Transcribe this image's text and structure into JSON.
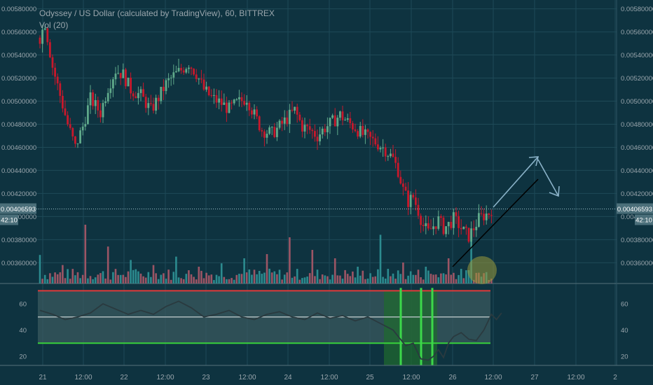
{
  "header": {
    "title": "Odyssey / US Dollar (calculated by TradingView), 60, BITTREX",
    "indicator": "Vol (20)"
  },
  "colors": {
    "background": "#0e3340",
    "grid": "#1e4a57",
    "up": "#5fa98a",
    "down": "#c8182b",
    "vol_up": "#2c8b8f",
    "vol_down": "#9c5565",
    "price_line": "#9bbfc8",
    "axis_text": "#9aa6ad",
    "osc_line": "#2a3a3f",
    "band_red": "#e03a3a",
    "band_green": "#37d13b",
    "band_fill": "#3c5b60",
    "arrow": "#8ab2c8",
    "trendline": "#000000",
    "highlight_bar": "#3cd84a",
    "highlight_zone": "#1f6b2e",
    "ellipse": "#9a9a3a"
  },
  "price_label": {
    "value": "0.00406593",
    "countdown": "42:10"
  },
  "chart_data": [
    {
      "type": "candlestick",
      "title": "Odyssey / US Dollar (calculated by TradingView), 60, BITTREX",
      "x_ticks": [
        "21",
        "12:00",
        "22",
        "12:00",
        "23",
        "12:00",
        "24",
        "12:00",
        "25",
        "12:00",
        "26",
        "12:00",
        "27",
        "12:00",
        "2"
      ],
      "y_ticks": [
        "0.00360000",
        "0.00380000",
        "0.00400000",
        "0.00420000",
        "0.00440000",
        "0.00460000",
        "0.00480000",
        "0.00500000",
        "0.00520000",
        "0.00540000",
        "0.00560000",
        "0.00580000"
      ],
      "ylim": [
        0.00342,
        0.00584
      ],
      "last_price": 0.00406593,
      "close_path": [
        [
          0,
          0.00555
        ],
        [
          2,
          0.00568
        ],
        [
          5,
          0.0053
        ],
        [
          8,
          0.00505
        ],
        [
          11,
          0.0048
        ],
        [
          14,
          0.0046
        ],
        [
          17,
          0.00478
        ],
        [
          20,
          0.00502
        ],
        [
          24,
          0.0049
        ],
        [
          27,
          0.00512
        ],
        [
          30,
          0.00527
        ],
        [
          33,
          0.00523
        ],
        [
          36,
          0.0051
        ],
        [
          40,
          0.00505
        ],
        [
          44,
          0.00492
        ],
        [
          47,
          0.00503
        ],
        [
          50,
          0.00515
        ],
        [
          53,
          0.00522
        ],
        [
          56,
          0.00527
        ],
        [
          59,
          0.00533
        ],
        [
          62,
          0.00524
        ],
        [
          65,
          0.0051
        ],
        [
          68,
          0.00503
        ],
        [
          72,
          0.00498
        ],
        [
          75,
          0.00493
        ],
        [
          78,
          0.00498
        ],
        [
          82,
          0.00503
        ],
        [
          85,
          0.00488
        ],
        [
          88,
          0.00475
        ],
        [
          92,
          0.00472
        ],
        [
          95,
          0.00478
        ],
        [
          98,
          0.00485
        ],
        [
          101,
          0.00492
        ],
        [
          104,
          0.00478
        ],
        [
          107,
          0.00475
        ],
        [
          110,
          0.0047
        ],
        [
          113,
          0.00477
        ],
        [
          116,
          0.00482
        ],
        [
          119,
          0.00488
        ],
        [
          122,
          0.00482
        ],
        [
          125,
          0.00477
        ],
        [
          128,
          0.00471
        ],
        [
          131,
          0.00467
        ],
        [
          134,
          0.00463
        ],
        [
          137,
          0.00458
        ],
        [
          140,
          0.0045
        ],
        [
          142,
          0.0044
        ],
        [
          144,
          0.00423
        ],
        [
          146,
          0.00413
        ],
        [
          148,
          0.00417
        ],
        [
          150,
          0.00405
        ],
        [
          152,
          0.00392
        ],
        [
          154,
          0.00386
        ],
        [
          156,
          0.00392
        ],
        [
          158,
          0.00397
        ],
        [
          160,
          0.0039
        ],
        [
          162,
          0.00393
        ],
        [
          164,
          0.00398
        ],
        [
          166,
          0.00393
        ],
        [
          168,
          0.00387
        ],
        [
          170,
          0.00383
        ],
        [
          172,
          0.0039
        ],
        [
          174,
          0.00398
        ],
        [
          176,
          0.00401
        ],
        [
          178,
          0.00403
        ],
        [
          179,
          0.00406593
        ]
      ]
    },
    {
      "type": "bar",
      "title": "Vol (20)",
      "series": [
        {
          "values": [
            34,
            22,
            70,
            44,
            28,
            22,
            32,
            20,
            24,
            30,
            35,
            55,
            40,
            30,
            20,
            58,
            25,
            20,
            30,
            62
          ]
        }
      ]
    },
    {
      "type": "line",
      "y_ticks": [
        "20",
        "40",
        "60"
      ],
      "ylim": [
        13,
        75
      ],
      "bands": [
        30,
        50,
        70
      ],
      "points": [
        [
          0,
          55
        ],
        [
          5,
          52
        ],
        [
          10,
          48
        ],
        [
          15,
          50
        ],
        [
          20,
          53
        ],
        [
          25,
          60
        ],
        [
          30,
          56
        ],
        [
          35,
          52
        ],
        [
          40,
          55
        ],
        [
          45,
          52
        ],
        [
          50,
          58
        ],
        [
          55,
          62
        ],
        [
          60,
          57
        ],
        [
          65,
          50
        ],
        [
          70,
          52
        ],
        [
          75,
          55
        ],
        [
          80,
          50
        ],
        [
          85,
          48
        ],
        [
          90,
          52
        ],
        [
          95,
          54
        ],
        [
          100,
          50
        ],
        [
          105,
          48
        ],
        [
          110,
          53
        ],
        [
          115,
          49
        ],
        [
          120,
          51
        ],
        [
          125,
          47
        ],
        [
          130,
          50
        ],
        [
          135,
          45
        ],
        [
          140,
          40
        ],
        [
          145,
          28
        ],
        [
          148,
          30
        ],
        [
          151,
          18
        ],
        [
          154,
          17
        ],
        [
          156,
          20
        ],
        [
          158,
          25
        ],
        [
          160,
          19
        ],
        [
          162,
          30
        ],
        [
          164,
          35
        ],
        [
          167,
          38
        ],
        [
          170,
          33
        ],
        [
          173,
          32
        ],
        [
          176,
          40
        ],
        [
          179,
          52
        ],
        [
          181,
          48
        ],
        [
          183,
          53
        ]
      ]
    }
  ]
}
